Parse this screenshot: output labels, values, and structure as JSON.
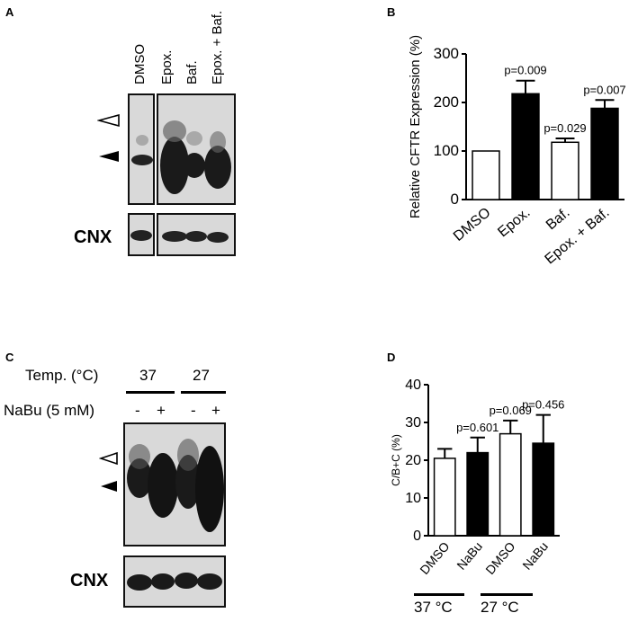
{
  "panels": {
    "a": {
      "letter": "A",
      "lanes": [
        "DMSO",
        "Epox.",
        "Baf.",
        "Epox. + Baf."
      ],
      "loading_label": "CNX"
    },
    "b": {
      "letter": "B"
    },
    "c": {
      "letter": "C",
      "temp_label": "Temp. (°C)",
      "temp_values": [
        "37",
        "27"
      ],
      "nabu_label": "NaBu (5 mM)",
      "signs": [
        "-",
        "+",
        "-",
        "+"
      ],
      "loading_label": "CNX"
    },
    "d": {
      "letter": "D",
      "groups": [
        "37 °C",
        "27 °C"
      ]
    }
  },
  "chart_data": [
    {
      "type": "bar",
      "panel": "B",
      "ylabel": "Relative CFTR Expression (%)",
      "ylim": [
        0,
        300
      ],
      "yticks": [
        "0",
        "100",
        "200",
        "300"
      ],
      "categories": [
        "DMSO",
        "Epox.",
        "Baf.",
        "Epox. + Baf."
      ],
      "values": [
        100,
        218,
        118,
        188
      ],
      "errors": [
        0,
        27,
        8,
        17
      ],
      "fills": [
        "white",
        "black",
        "white",
        "black"
      ],
      "annotations": [
        "",
        "p=0.009",
        "p=0.029",
        "p=0.007"
      ]
    },
    {
      "type": "bar",
      "panel": "D",
      "ylabel": "C/B+C (%)",
      "ylim": [
        0,
        40
      ],
      "yticks": [
        "0",
        "10",
        "20",
        "30",
        "40"
      ],
      "categories": [
        "DMSO",
        "NaBu",
        "DMSO",
        "NaBu"
      ],
      "values": [
        20.5,
        22,
        27,
        24.5
      ],
      "errors": [
        2.5,
        4,
        3.5,
        7.5
      ],
      "fills": [
        "white",
        "black",
        "white",
        "black"
      ],
      "annotations": [
        "",
        "p=0.601",
        "p=0.069",
        "p=0.456"
      ]
    }
  ],
  "colors": {
    "ink": "#000000",
    "blot_bg": "#d9d9d9",
    "band": "#111111"
  }
}
